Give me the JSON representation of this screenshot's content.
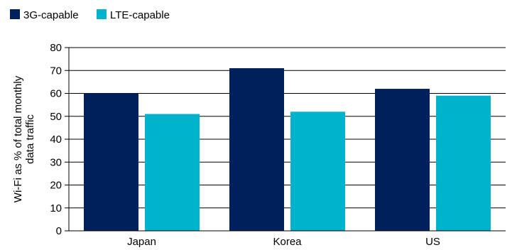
{
  "chart_data": {
    "type": "bar",
    "categories": [
      "Japan",
      "Korea",
      "US"
    ],
    "series": [
      {
        "name": "3G-capable",
        "values": [
          60,
          71,
          62
        ],
        "color": "#00205b"
      },
      {
        "name": "LTE-capable",
        "values": [
          51,
          52,
          59
        ],
        "color": "#00b3cc"
      }
    ],
    "ylabel_lines": [
      "Wi-Fi as % of total monthly",
      "data traffic"
    ],
    "xlabel": "",
    "ylim": [
      0,
      80
    ],
    "yticks": [
      0,
      10,
      20,
      30,
      40,
      50,
      60,
      70,
      80
    ],
    "grid": true,
    "legend_position": "top-left"
  }
}
